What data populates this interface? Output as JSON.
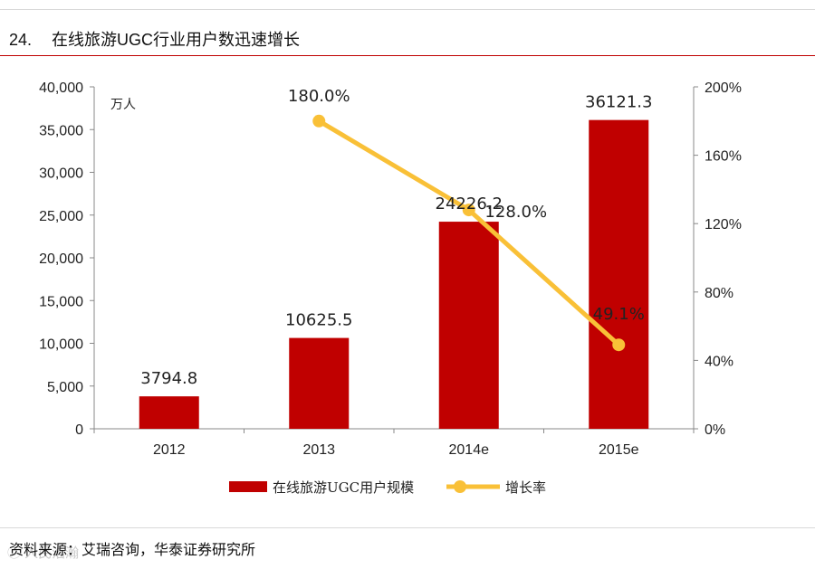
{
  "header": {
    "figure_number": "24.",
    "title": "在线旅游UGC行业用户数迅速增长"
  },
  "footer": {
    "source": "资料来源：艾瑞咨询，华泰证券研究所",
    "watermark": "ⓒ 人民浩瀚"
  },
  "colors": {
    "bar": "#c00000",
    "line": "#f9c037",
    "title_rule": "#c00000"
  },
  "chart_data": {
    "type": "bar",
    "categories": [
      "2012",
      "2013",
      "2014e",
      "2015e"
    ],
    "series": [
      {
        "name": "在线旅游UGC用户规模",
        "type": "bar",
        "axis": "left",
        "values": [
          3794.8,
          10625.5,
          24226.2,
          36121.3
        ],
        "labels": [
          "3794.8",
          "10625.5",
          "24226.2",
          "36121.3"
        ]
      },
      {
        "name": "增长率",
        "type": "line",
        "axis": "right",
        "values": [
          null,
          180.0,
          128.0,
          49.1
        ],
        "labels": [
          "",
          "180.0%",
          "128.0%",
          "49.1%"
        ]
      }
    ],
    "y_left": {
      "unit_label": "万人",
      "ylim": [
        0,
        40000
      ],
      "ticks": [
        "0",
        "5,000",
        "10,000",
        "15,000",
        "20,000",
        "25,000",
        "30,000",
        "35,000",
        "40,000"
      ]
    },
    "y_right": {
      "ylim": [
        0,
        200
      ],
      "ticks": [
        "0%",
        "40%",
        "80%",
        "120%",
        "160%",
        "200%"
      ]
    },
    "grid": false,
    "legend_position": "bottom"
  }
}
